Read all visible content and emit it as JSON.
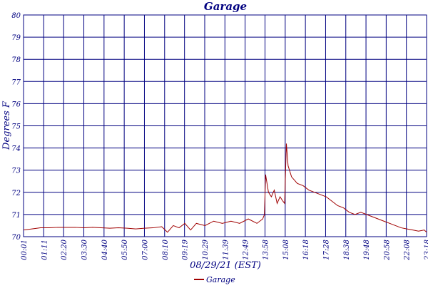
{
  "chart_data": {
    "type": "line",
    "title": "Garage",
    "y_label": "Degrees F",
    "x_label": "08/29/21 (EST)",
    "xlim": [
      1,
      1398
    ],
    "ylim": [
      70,
      80
    ],
    "yticks": [
      70,
      71,
      72,
      73,
      74,
      75,
      76,
      77,
      78,
      79,
      80
    ],
    "xticks": [
      {
        "value": 1,
        "label": "00:01"
      },
      {
        "value": 71,
        "label": "01:11"
      },
      {
        "value": 140,
        "label": "02:20"
      },
      {
        "value": 210,
        "label": "03:30"
      },
      {
        "value": 280,
        "label": "04:40"
      },
      {
        "value": 350,
        "label": "05:50"
      },
      {
        "value": 420,
        "label": "07:00"
      },
      {
        "value": 490,
        "label": "08:10"
      },
      {
        "value": 559,
        "label": "09:19"
      },
      {
        "value": 629,
        "label": "10:29"
      },
      {
        "value": 699,
        "label": "11:39"
      },
      {
        "value": 769,
        "label": "12:49"
      },
      {
        "value": 838,
        "label": "13:58"
      },
      {
        "value": 908,
        "label": "15:08"
      },
      {
        "value": 978,
        "label": "16:18"
      },
      {
        "value": 1048,
        "label": "17:28"
      },
      {
        "value": 1118,
        "label": "18:38"
      },
      {
        "value": 1188,
        "label": "19:48"
      },
      {
        "value": 1258,
        "label": "20:58"
      },
      {
        "value": 1328,
        "label": "22:08"
      },
      {
        "value": 1398,
        "label": "23:18"
      }
    ],
    "grid": true,
    "x": [
      1,
      30,
      60,
      90,
      120,
      150,
      180,
      210,
      240,
      270,
      300,
      330,
      360,
      390,
      420,
      450,
      480,
      500,
      520,
      540,
      560,
      580,
      600,
      630,
      660,
      690,
      720,
      750,
      780,
      810,
      830,
      836,
      840,
      850,
      860,
      870,
      880,
      890,
      900,
      906,
      912,
      918,
      930,
      950,
      970,
      990,
      1010,
      1030,
      1050,
      1070,
      1090,
      1110,
      1130,
      1150,
      1170,
      1190,
      1210,
      1230,
      1250,
      1270,
      1290,
      1310,
      1330,
      1350,
      1370,
      1390,
      1398
    ],
    "series": [
      {
        "name": "Garage",
        "color": "#a00000",
        "values": [
          70.3,
          70.35,
          70.4,
          70.4,
          70.42,
          70.42,
          70.42,
          70.4,
          70.42,
          70.4,
          70.38,
          70.4,
          70.38,
          70.35,
          70.38,
          70.4,
          70.45,
          70.2,
          70.5,
          70.4,
          70.6,
          70.3,
          70.6,
          70.5,
          70.7,
          70.6,
          70.7,
          70.6,
          70.8,
          70.6,
          70.8,
          71.0,
          72.8,
          72.0,
          71.8,
          72.1,
          71.5,
          71.8,
          71.6,
          71.5,
          74.2,
          73.2,
          72.7,
          72.4,
          72.3,
          72.1,
          72.0,
          71.9,
          71.8,
          71.6,
          71.4,
          71.3,
          71.1,
          71.0,
          71.1,
          71.0,
          70.9,
          70.8,
          70.7,
          70.6,
          70.5,
          70.4,
          70.35,
          70.3,
          70.25,
          70.3,
          70.2
        ]
      }
    ]
  }
}
